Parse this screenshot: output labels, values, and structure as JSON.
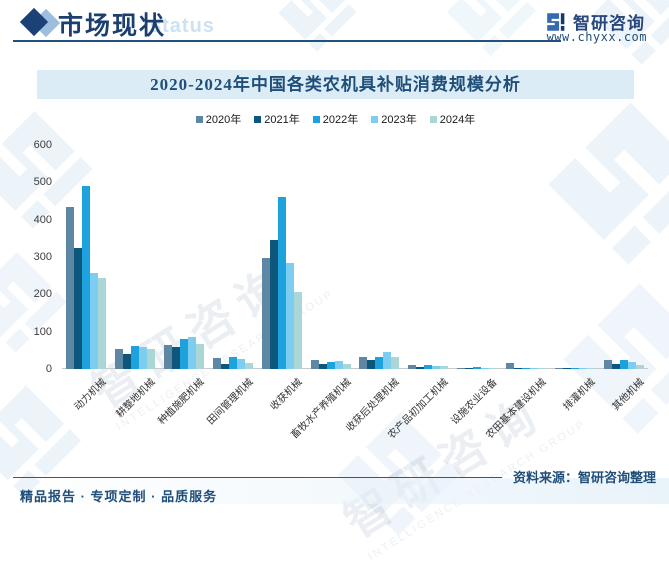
{
  "header": {
    "title": "市场现状",
    "title_watermark": "status",
    "brand_name": "智研咨询",
    "website": "www.chyxx.com"
  },
  "chart_data": {
    "type": "bar",
    "title": "2020-2024年中国各类农机具补贴消费规模分析",
    "categories": [
      "动力机械",
      "耕整地机械",
      "种植施肥机械",
      "田间管理机械",
      "收获机械",
      "畜牧水产养殖机械",
      "收获后处理机械",
      "农产品初加工机械",
      "设施农业设备",
      "农田基本建设机械",
      "排灌机械",
      "其他机械"
    ],
    "series": [
      {
        "name": "2020年",
        "color": "#5e87a3",
        "values": [
          435,
          54,
          65,
          29,
          297,
          25,
          33,
          10,
          4,
          15,
          3,
          25
        ]
      },
      {
        "name": "2021年",
        "color": "#0d567c",
        "values": [
          325,
          40,
          58,
          14,
          347,
          13,
          25,
          6,
          2,
          3,
          4,
          13
        ]
      },
      {
        "name": "2022年",
        "color": "#1ea2de",
        "values": [
          490,
          63,
          80,
          32,
          460,
          18,
          31,
          10,
          5,
          3,
          4,
          24
        ]
      },
      {
        "name": "2023年",
        "color": "#7ccdf0",
        "values": [
          258,
          60,
          87,
          27,
          284,
          21,
          46,
          9,
          4,
          3,
          3,
          18
        ]
      },
      {
        "name": "2024年",
        "color": "#aad7d5",
        "values": [
          244,
          54,
          67,
          16,
          206,
          13,
          31,
          7,
          2,
          2,
          2,
          10
        ]
      }
    ],
    "ylim": [
      0,
      600
    ],
    "ytick_step": 100,
    "grid": false,
    "legend_position": "top"
  },
  "footer": {
    "source": "资料来源：智研咨询整理",
    "tagline": "精品报告 · 专项定制 · 品质服务"
  },
  "watermark": {
    "cn": "智研咨询",
    "en": "INTELLIGENCE RESEARCH GROUP"
  }
}
